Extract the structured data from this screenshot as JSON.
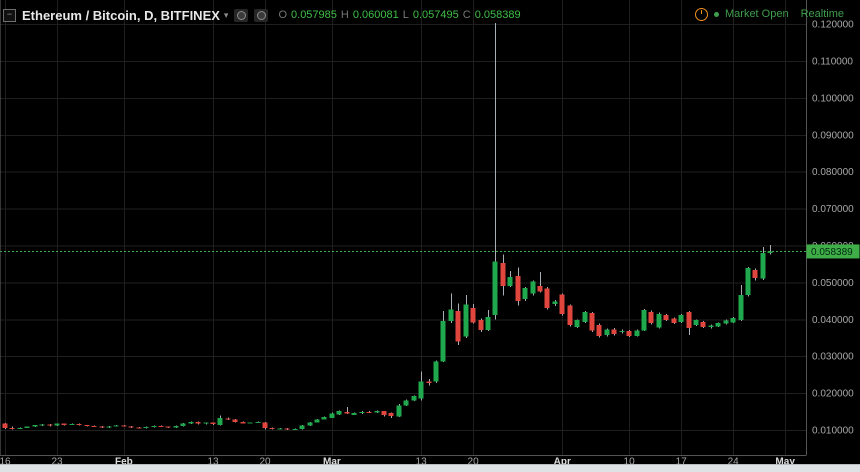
{
  "header": {
    "collapse_glyph": "−",
    "title": "Ethereum / Bitcoin, D, BITFINEX",
    "caret": "▾",
    "o_label": "O",
    "o_value": "0.057985",
    "h_label": "H",
    "h_value": "0.060081",
    "l_label": "L",
    "l_value": "0.057495",
    "c_label": "C",
    "c_value": "0.058389",
    "market_status": "Market Open",
    "feed_status": "Realtime"
  },
  "colors": {
    "background": "#000000",
    "grid": "#1f1f1f",
    "plot_border": "#555555",
    "left_edge": "#5a5a5a",
    "up": "#1fa84d",
    "down": "#e0463e",
    "wick": "#a9adb5",
    "axis_text": "#a8a8a8",
    "month_text": "#dcdcdc",
    "price_line": "#3fae49",
    "tag_bg": "#3fae49",
    "tag_text": "#002a10",
    "header_green": "#3fbf47",
    "status_green": "#3f9e4e",
    "clock_orange": "#f2921d"
  },
  "chart_data": {
    "type": "candlestick",
    "title": "Ethereum / Bitcoin",
    "exchange": "BITFINEX",
    "interval": "D",
    "legend_position": "top-left",
    "grid": true,
    "visible_price_range": [
      0.0093,
      0.1265
    ],
    "last_price": 0.058389,
    "last_price_label": "0.058389",
    "y_ticks": [
      {
        "label": "0.120000",
        "price": 0.12
      },
      {
        "label": "0.110000",
        "price": 0.11
      },
      {
        "label": "0.100000",
        "price": 0.1
      },
      {
        "label": "0.090000",
        "price": 0.09
      },
      {
        "label": "0.080000",
        "price": 0.08
      },
      {
        "label": "0.070000",
        "price": 0.07
      },
      {
        "label": "0.060000",
        "price": 0.06
      },
      {
        "label": "0.050000",
        "price": 0.05
      },
      {
        "label": "0.040000",
        "price": 0.04
      },
      {
        "label": "0.030000",
        "price": 0.03
      },
      {
        "label": "0.020000",
        "price": 0.02
      },
      {
        "label": "0.010000",
        "price": 0.01
      }
    ],
    "x_ticks": [
      {
        "label": "16",
        "i": 1,
        "month": false
      },
      {
        "label": "23",
        "i": 8,
        "month": false
      },
      {
        "label": "Feb",
        "i": 17,
        "month": true
      },
      {
        "label": "13",
        "i": 29,
        "month": false
      },
      {
        "label": "20",
        "i": 36,
        "month": false
      },
      {
        "label": "Mar",
        "i": 45,
        "month": true
      },
      {
        "label": "13",
        "i": 57,
        "month": false
      },
      {
        "label": "20",
        "i": 64,
        "month": false
      },
      {
        "label": "Apr",
        "i": 76,
        "month": true
      },
      {
        "label": "10",
        "i": 85,
        "month": false
      },
      {
        "label": "17",
        "i": 92,
        "month": false
      },
      {
        "label": "24",
        "i": 99,
        "month": false
      },
      {
        "label": "May",
        "i": 106,
        "month": true
      }
    ],
    "candles": [
      {
        "d": "Jan 16",
        "o": 0.0117,
        "h": 0.0119,
        "l": 0.0103,
        "c": 0.0106
      },
      {
        "d": "Jan 17",
        "o": 0.0106,
        "h": 0.0109,
        "l": 0.0102,
        "c": 0.0104
      },
      {
        "d": "Jan 18",
        "o": 0.0104,
        "h": 0.0107,
        "l": 0.0103,
        "c": 0.0106
      },
      {
        "d": "Jan 19",
        "o": 0.0106,
        "h": 0.011,
        "l": 0.0105,
        "c": 0.0109
      },
      {
        "d": "Jan 20",
        "o": 0.0109,
        "h": 0.0114,
        "l": 0.0108,
        "c": 0.0113
      },
      {
        "d": "Jan 21",
        "o": 0.0113,
        "h": 0.0116,
        "l": 0.0111,
        "c": 0.0115
      },
      {
        "d": "Jan 22",
        "o": 0.0115,
        "h": 0.0116,
        "l": 0.011,
        "c": 0.0112
      },
      {
        "d": "Jan 23",
        "o": 0.0112,
        "h": 0.0118,
        "l": 0.0111,
        "c": 0.0117
      },
      {
        "d": "Jan 24",
        "o": 0.0117,
        "h": 0.0118,
        "l": 0.0112,
        "c": 0.0114
      },
      {
        "d": "Jan 25",
        "o": 0.0114,
        "h": 0.0117,
        "l": 0.0113,
        "c": 0.0116
      },
      {
        "d": "Jan 26",
        "o": 0.0116,
        "h": 0.0117,
        "l": 0.0112,
        "c": 0.0113
      },
      {
        "d": "Jan 27",
        "o": 0.0113,
        "h": 0.0114,
        "l": 0.011,
        "c": 0.0111
      },
      {
        "d": "Jan 28",
        "o": 0.0111,
        "h": 0.0112,
        "l": 0.0108,
        "c": 0.0109
      },
      {
        "d": "Jan 29",
        "o": 0.0109,
        "h": 0.0111,
        "l": 0.0106,
        "c": 0.0107
      },
      {
        "d": "Jan 30",
        "o": 0.0107,
        "h": 0.0111,
        "l": 0.0106,
        "c": 0.011
      },
      {
        "d": "Jan 31",
        "o": 0.011,
        "h": 0.0113,
        "l": 0.0109,
        "c": 0.0112
      },
      {
        "d": "Feb 1",
        "o": 0.0112,
        "h": 0.0113,
        "l": 0.0109,
        "c": 0.011
      },
      {
        "d": "Feb 2",
        "o": 0.011,
        "h": 0.0111,
        "l": 0.0106,
        "c": 0.0107
      },
      {
        "d": "Feb 3",
        "o": 0.0107,
        "h": 0.0108,
        "l": 0.0104,
        "c": 0.0105
      },
      {
        "d": "Feb 4",
        "o": 0.0105,
        "h": 0.0109,
        "l": 0.0104,
        "c": 0.0108
      },
      {
        "d": "Feb 5",
        "o": 0.0108,
        "h": 0.0112,
        "l": 0.0107,
        "c": 0.0111
      },
      {
        "d": "Feb 6",
        "o": 0.0111,
        "h": 0.0112,
        "l": 0.0108,
        "c": 0.0109
      },
      {
        "d": "Feb 7",
        "o": 0.0109,
        "h": 0.011,
        "l": 0.0106,
        "c": 0.0107
      },
      {
        "d": "Feb 8",
        "o": 0.0107,
        "h": 0.0112,
        "l": 0.0106,
        "c": 0.0111
      },
      {
        "d": "Feb 9",
        "o": 0.0111,
        "h": 0.0119,
        "l": 0.011,
        "c": 0.0118
      },
      {
        "d": "Feb 10",
        "o": 0.0118,
        "h": 0.0123,
        "l": 0.0116,
        "c": 0.0122
      },
      {
        "d": "Feb 11",
        "o": 0.0122,
        "h": 0.0123,
        "l": 0.0115,
        "c": 0.0117
      },
      {
        "d": "Feb 12",
        "o": 0.0117,
        "h": 0.0121,
        "l": 0.0115,
        "c": 0.012
      },
      {
        "d": "Feb 13",
        "o": 0.012,
        "h": 0.0121,
        "l": 0.0114,
        "c": 0.0116
      },
      {
        "d": "Feb 14",
        "o": 0.0114,
        "h": 0.0139,
        "l": 0.0112,
        "c": 0.0132
      },
      {
        "d": "Feb 15",
        "o": 0.0131,
        "h": 0.0134,
        "l": 0.0127,
        "c": 0.0129
      },
      {
        "d": "Feb 16",
        "o": 0.0129,
        "h": 0.013,
        "l": 0.0121,
        "c": 0.0122
      },
      {
        "d": "Feb 17",
        "o": 0.0122,
        "h": 0.0123,
        "l": 0.0117,
        "c": 0.0118
      },
      {
        "d": "Feb 18",
        "o": 0.0118,
        "h": 0.0121,
        "l": 0.0117,
        "c": 0.012
      },
      {
        "d": "Feb 19",
        "o": 0.012,
        "h": 0.0123,
        "l": 0.0119,
        "c": 0.0122
      },
      {
        "d": "Feb 20",
        "o": 0.0121,
        "h": 0.0122,
        "l": 0.0102,
        "c": 0.0105
      },
      {
        "d": "Feb 21",
        "o": 0.0105,
        "h": 0.0107,
        "l": 0.0102,
        "c": 0.0103
      },
      {
        "d": "Feb 22",
        "o": 0.0103,
        "h": 0.0106,
        "l": 0.0102,
        "c": 0.0104
      },
      {
        "d": "Feb 23",
        "o": 0.0104,
        "h": 0.0105,
        "l": 0.01,
        "c": 0.0101
      },
      {
        "d": "Feb 24",
        "o": 0.0101,
        "h": 0.0104,
        "l": 0.01,
        "c": 0.0103
      },
      {
        "d": "Feb 25",
        "o": 0.0103,
        "h": 0.0113,
        "l": 0.0102,
        "c": 0.0112
      },
      {
        "d": "Feb 26",
        "o": 0.0112,
        "h": 0.0122,
        "l": 0.0111,
        "c": 0.0121
      },
      {
        "d": "Feb 27",
        "o": 0.0121,
        "h": 0.013,
        "l": 0.012,
        "c": 0.0129
      },
      {
        "d": "Feb 28",
        "o": 0.0129,
        "h": 0.0136,
        "l": 0.0128,
        "c": 0.0135
      },
      {
        "d": "Mar 1",
        "o": 0.0133,
        "h": 0.0147,
        "l": 0.0132,
        "c": 0.0145
      },
      {
        "d": "Mar 2",
        "o": 0.0142,
        "h": 0.0153,
        "l": 0.0141,
        "c": 0.0151
      },
      {
        "d": "Mar 3",
        "o": 0.0149,
        "h": 0.0162,
        "l": 0.0143,
        "c": 0.0145
      },
      {
        "d": "Mar 4",
        "o": 0.0141,
        "h": 0.0148,
        "l": 0.014,
        "c": 0.0146
      },
      {
        "d": "Mar 5",
        "o": 0.0146,
        "h": 0.0151,
        "l": 0.0144,
        "c": 0.0149
      },
      {
        "d": "Mar 6",
        "o": 0.0149,
        "h": 0.0152,
        "l": 0.0146,
        "c": 0.0148
      },
      {
        "d": "Mar 7",
        "o": 0.0148,
        "h": 0.0153,
        "l": 0.0146,
        "c": 0.0151
      },
      {
        "d": "Mar 8",
        "o": 0.0151,
        "h": 0.0152,
        "l": 0.0136,
        "c": 0.014
      },
      {
        "d": "Mar 9",
        "o": 0.0146,
        "h": 0.0147,
        "l": 0.0133,
        "c": 0.0138
      },
      {
        "d": "Mar 10",
        "o": 0.0137,
        "h": 0.017,
        "l": 0.0135,
        "c": 0.0167
      },
      {
        "d": "Mar 11",
        "o": 0.0167,
        "h": 0.0183,
        "l": 0.0165,
        "c": 0.018
      },
      {
        "d": "Mar 12",
        "o": 0.018,
        "h": 0.0194,
        "l": 0.0178,
        "c": 0.0192
      },
      {
        "d": "Mar 13",
        "o": 0.0185,
        "h": 0.0259,
        "l": 0.018,
        "c": 0.0232
      },
      {
        "d": "Mar 14",
        "o": 0.0232,
        "h": 0.0238,
        "l": 0.0221,
        "c": 0.0228
      },
      {
        "d": "Mar 15",
        "o": 0.0231,
        "h": 0.0289,
        "l": 0.0228,
        "c": 0.0286
      },
      {
        "d": "Mar 16",
        "o": 0.0286,
        "h": 0.0422,
        "l": 0.0284,
        "c": 0.0395
      },
      {
        "d": "Mar 17",
        "o": 0.0395,
        "h": 0.047,
        "l": 0.039,
        "c": 0.0427
      },
      {
        "d": "Mar 18",
        "o": 0.0422,
        "h": 0.0443,
        "l": 0.033,
        "c": 0.034
      },
      {
        "d": "Mar 19",
        "o": 0.0354,
        "h": 0.0466,
        "l": 0.035,
        "c": 0.044
      },
      {
        "d": "Mar 20",
        "o": 0.043,
        "h": 0.0442,
        "l": 0.0388,
        "c": 0.0392
      },
      {
        "d": "Mar 21",
        "o": 0.0398,
        "h": 0.0402,
        "l": 0.0365,
        "c": 0.0371
      },
      {
        "d": "Mar 22",
        "o": 0.0371,
        "h": 0.0425,
        "l": 0.0368,
        "c": 0.0406
      },
      {
        "d": "Mar 23",
        "o": 0.0412,
        "h": 0.1203,
        "l": 0.04,
        "c": 0.0556
      },
      {
        "d": "Mar 24",
        "o": 0.0553,
        "h": 0.0575,
        "l": 0.0465,
        "c": 0.049
      },
      {
        "d": "Mar 25",
        "o": 0.049,
        "h": 0.0531,
        "l": 0.0487,
        "c": 0.0515
      },
      {
        "d": "Mar 26",
        "o": 0.0517,
        "h": 0.054,
        "l": 0.0437,
        "c": 0.045
      },
      {
        "d": "Mar 27",
        "o": 0.0455,
        "h": 0.0488,
        "l": 0.045,
        "c": 0.0485
      },
      {
        "d": "Mar 28",
        "o": 0.047,
        "h": 0.0505,
        "l": 0.0465,
        "c": 0.0502
      },
      {
        "d": "Mar 29",
        "o": 0.049,
        "h": 0.0528,
        "l": 0.0472,
        "c": 0.0475
      },
      {
        "d": "Mar 30",
        "o": 0.0483,
        "h": 0.0487,
        "l": 0.0426,
        "c": 0.043
      },
      {
        "d": "Mar 31",
        "o": 0.0442,
        "h": 0.0452,
        "l": 0.0436,
        "c": 0.0448
      },
      {
        "d": "Apr 1",
        "o": 0.0467,
        "h": 0.047,
        "l": 0.041,
        "c": 0.0415
      },
      {
        "d": "Apr 2",
        "o": 0.0438,
        "h": 0.044,
        "l": 0.038,
        "c": 0.0385
      },
      {
        "d": "Apr 3",
        "o": 0.0379,
        "h": 0.04,
        "l": 0.0376,
        "c": 0.0398
      },
      {
        "d": "Apr 4",
        "o": 0.0393,
        "h": 0.0423,
        "l": 0.039,
        "c": 0.042
      },
      {
        "d": "Apr 5",
        "o": 0.0417,
        "h": 0.042,
        "l": 0.0365,
        "c": 0.037
      },
      {
        "d": "Apr 6",
        "o": 0.0385,
        "h": 0.0388,
        "l": 0.0351,
        "c": 0.0355
      },
      {
        "d": "Apr 7",
        "o": 0.0357,
        "h": 0.0375,
        "l": 0.0354,
        "c": 0.0372
      },
      {
        "d": "Apr 8",
        "o": 0.0372,
        "h": 0.0376,
        "l": 0.0356,
        "c": 0.036
      },
      {
        "d": "Apr 9",
        "o": 0.0365,
        "h": 0.0373,
        "l": 0.0361,
        "c": 0.0368
      },
      {
        "d": "Apr 10",
        "o": 0.0368,
        "h": 0.0371,
        "l": 0.0352,
        "c": 0.0355
      },
      {
        "d": "Apr 11",
        "o": 0.0355,
        "h": 0.0373,
        "l": 0.0353,
        "c": 0.037
      },
      {
        "d": "Apr 12",
        "o": 0.037,
        "h": 0.0428,
        "l": 0.0368,
        "c": 0.0425
      },
      {
        "d": "Apr 13",
        "o": 0.042,
        "h": 0.0424,
        "l": 0.0386,
        "c": 0.039
      },
      {
        "d": "Apr 14",
        "o": 0.0378,
        "h": 0.0418,
        "l": 0.0375,
        "c": 0.0415
      },
      {
        "d": "Apr 15",
        "o": 0.0412,
        "h": 0.0415,
        "l": 0.0395,
        "c": 0.0398
      },
      {
        "d": "Apr 16",
        "o": 0.0402,
        "h": 0.0405,
        "l": 0.0387,
        "c": 0.039
      },
      {
        "d": "Apr 17",
        "o": 0.0393,
        "h": 0.0415,
        "l": 0.039,
        "c": 0.0412
      },
      {
        "d": "Apr 18",
        "o": 0.042,
        "h": 0.0423,
        "l": 0.0357,
        "c": 0.0377
      },
      {
        "d": "Apr 19",
        "o": 0.0385,
        "h": 0.04,
        "l": 0.0382,
        "c": 0.0398
      },
      {
        "d": "Apr 20",
        "o": 0.0393,
        "h": 0.0396,
        "l": 0.0376,
        "c": 0.0379
      },
      {
        "d": "Apr 21",
        "o": 0.0379,
        "h": 0.0386,
        "l": 0.0375,
        "c": 0.0383
      },
      {
        "d": "Apr 22",
        "o": 0.0381,
        "h": 0.0392,
        "l": 0.0379,
        "c": 0.039
      },
      {
        "d": "Apr 23",
        "o": 0.0388,
        "h": 0.0399,
        "l": 0.0386,
        "c": 0.0397
      },
      {
        "d": "Apr 24",
        "o": 0.0392,
        "h": 0.0406,
        "l": 0.039,
        "c": 0.0403
      },
      {
        "d": "Apr 25",
        "o": 0.0398,
        "h": 0.0493,
        "l": 0.0395,
        "c": 0.0466
      },
      {
        "d": "Apr 26",
        "o": 0.0466,
        "h": 0.0542,
        "l": 0.0462,
        "c": 0.0539
      },
      {
        "d": "Apr 27",
        "o": 0.0534,
        "h": 0.0538,
        "l": 0.0505,
        "c": 0.0512
      },
      {
        "d": "Apr 28",
        "o": 0.051,
        "h": 0.0596,
        "l": 0.0506,
        "c": 0.058
      },
      {
        "d": "Apr 29",
        "o": 0.057985,
        "h": 0.060081,
        "l": 0.057495,
        "c": 0.058389
      }
    ]
  }
}
